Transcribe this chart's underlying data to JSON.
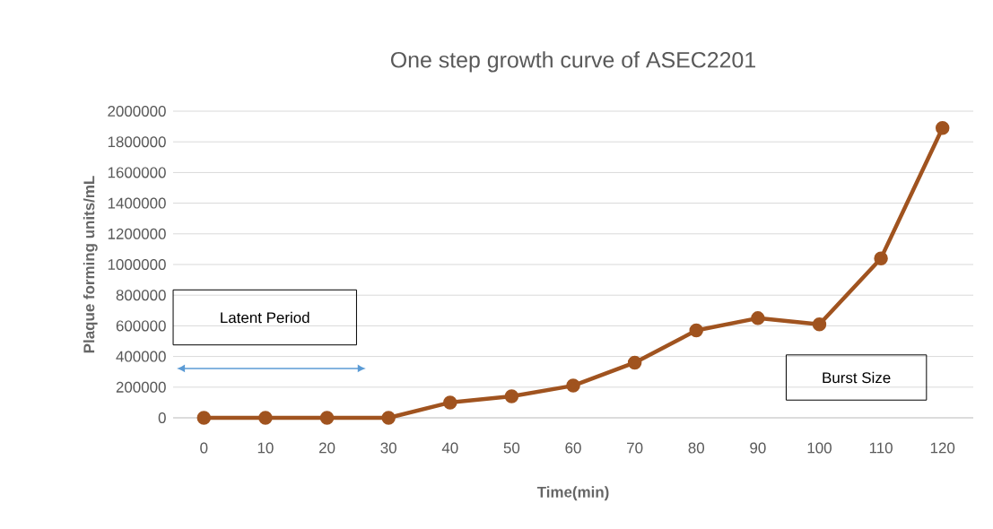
{
  "chart_data": {
    "type": "line",
    "title": "One step growth curve of ASEC2201",
    "xlabel": "Time(min)",
    "ylabel": "Plaque forming units/mL",
    "categories": [
      "0",
      "10",
      "20",
      "30",
      "40",
      "50",
      "60",
      "70",
      "80",
      "90",
      "100",
      "110",
      "120"
    ],
    "series": [
      {
        "color": "#a0531f",
        "values": [
          0,
          0,
          0,
          0,
          100000,
          140000,
          210000,
          360000,
          570000,
          650000,
          610000,
          1040000,
          1890000
        ]
      }
    ],
    "ylim": [
      0,
      2000000
    ],
    "yticks": [
      0,
      200000,
      400000,
      600000,
      800000,
      1000000,
      1200000,
      1400000,
      1600000,
      1800000,
      2000000
    ],
    "grid": "y",
    "marker": "circle",
    "line_style": "solid",
    "annotations": [
      "Latent Period",
      "Burst Size"
    ]
  }
}
